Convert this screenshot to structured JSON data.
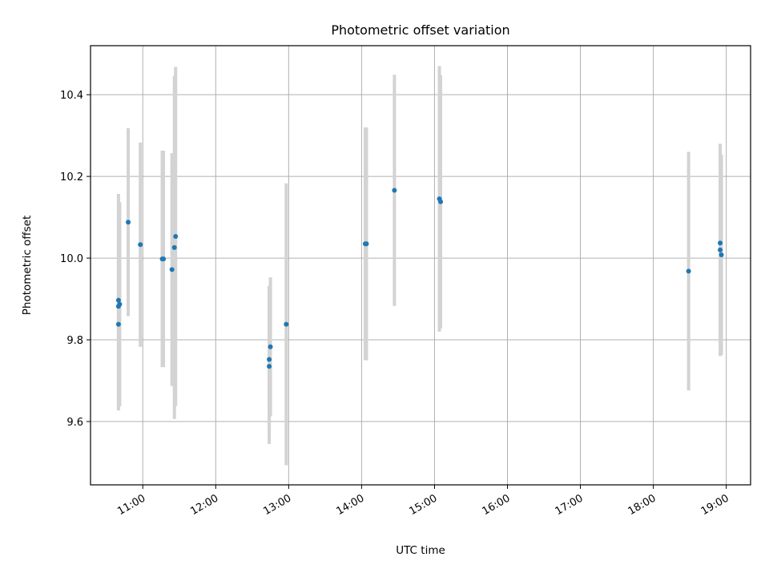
{
  "chart_data": {
    "type": "scatter",
    "title": "Photometric offset variation",
    "xlabel": "UTC time",
    "ylabel": "Photometric offset",
    "x_ticks": [
      "11:00",
      "12:00",
      "13:00",
      "14:00",
      "15:00",
      "16:00",
      "17:00",
      "18:00",
      "19:00"
    ],
    "y_ticks": [
      "9.6",
      "9.8",
      "10.0",
      "10.2",
      "10.4"
    ],
    "xlim": [
      "10:17",
      "19:20"
    ],
    "ylim": [
      9.445,
      10.52
    ],
    "grid": true,
    "colors": {
      "marker": "#1f77b4",
      "errorbar": "#d3d3d3",
      "grid": "#b0b0b0"
    },
    "points": [
      {
        "time": "10:40",
        "y": 9.882,
        "err": 0.255
      },
      {
        "time": "10:40",
        "y": 9.897,
        "err": 0.26
      },
      {
        "time": "10:40",
        "y": 9.838,
        "err": 0.2
      },
      {
        "time": "10:41",
        "y": 9.887,
        "err": 0.25
      },
      {
        "time": "10:48",
        "y": 10.088,
        "err": 0.23
      },
      {
        "time": "10:58",
        "y": 10.033,
        "err": 0.25
      },
      {
        "time": "11:16",
        "y": 9.998,
        "err": 0.265
      },
      {
        "time": "11:17",
        "y": 9.998,
        "err": 0.265
      },
      {
        "time": "11:24",
        "y": 9.972,
        "err": 0.285
      },
      {
        "time": "11:26",
        "y": 10.026,
        "err": 0.42
      },
      {
        "time": "11:27",
        "y": 10.053,
        "err": 0.415
      },
      {
        "time": "12:44",
        "y": 9.735,
        "err": 0.19
      },
      {
        "time": "12:44",
        "y": 9.752,
        "err": 0.18
      },
      {
        "time": "12:45",
        "y": 9.783,
        "err": 0.17
      },
      {
        "time": "12:58",
        "y": 9.838,
        "err": 0.345
      },
      {
        "time": "14:03",
        "y": 10.035,
        "err": 0.285
      },
      {
        "time": "14:04",
        "y": 10.035,
        "err": 0.285
      },
      {
        "time": "14:27",
        "y": 10.166,
        "err": 0.283
      },
      {
        "time": "15:04",
        "y": 10.145,
        "err": 0.325
      },
      {
        "time": "15:05",
        "y": 10.138,
        "err": 0.31
      },
      {
        "time": "18:29",
        "y": 9.968,
        "err": 0.292
      },
      {
        "time": "18:55",
        "y": 10.037,
        "err": 0.24
      },
      {
        "time": "18:55",
        "y": 10.02,
        "err": 0.26
      },
      {
        "time": "18:56",
        "y": 10.008,
        "err": 0.245
      }
    ]
  }
}
